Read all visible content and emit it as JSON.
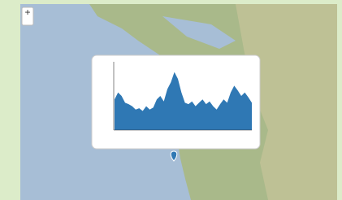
{
  "controls": {
    "zoom_in": "+"
  },
  "chart_data": {
    "type": "area",
    "color": "#2f78b4",
    "values": [
      45,
      55,
      50,
      40,
      38,
      35,
      30,
      32,
      28,
      35,
      30,
      33,
      45,
      50,
      42,
      60,
      70,
      85,
      75,
      55,
      40,
      38,
      42,
      35,
      40,
      45,
      38,
      42,
      35,
      30,
      38,
      45,
      40,
      55,
      65,
      58,
      50,
      55,
      48,
      40
    ],
    "ylim": [
      0,
      100
    ]
  }
}
